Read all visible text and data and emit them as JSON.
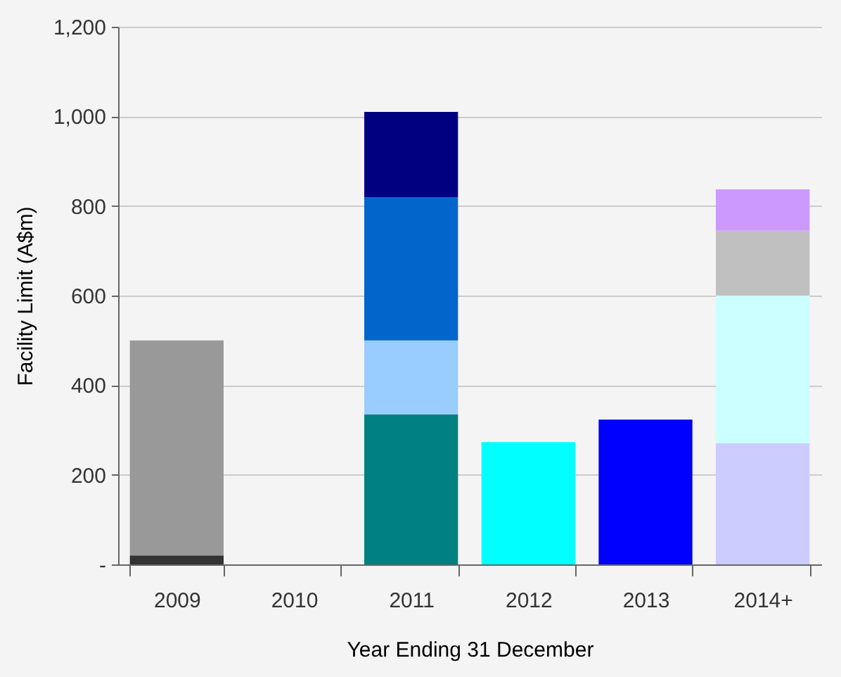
{
  "chart_data": {
    "type": "bar",
    "stacked": true,
    "xlabel": "Year Ending 31 December",
    "ylabel": "Facility Limit (A$m)",
    "categories": [
      "2009",
      "2010",
      "2011",
      "2012",
      "2013",
      "2014+"
    ],
    "series": [
      {
        "colors": [
          "#333333",
          null,
          "#008080",
          "#00ffff",
          "#0000ff",
          "#ccccff"
        ],
        "values": [
          20,
          null,
          335,
          273,
          323,
          270
        ]
      },
      {
        "colors": [
          "#999999",
          null,
          "#99ccff",
          null,
          null,
          "#ccffff"
        ],
        "values": [
          480,
          null,
          165,
          null,
          null,
          330
        ]
      },
      {
        "colors": [
          null,
          null,
          "#0066cc",
          null,
          null,
          "#c0c0c0"
        ],
        "values": [
          null,
          null,
          320,
          null,
          null,
          145
        ]
      },
      {
        "colors": [
          null,
          null,
          "#000080",
          null,
          null,
          "#cc99ff"
        ],
        "values": [
          null,
          null,
          190,
          null,
          null,
          92
        ]
      }
    ],
    "ylim": [
      0,
      1200
    ],
    "yticks": [
      {
        "value": 0,
        "label": "-"
      },
      200,
      400,
      600,
      800,
      {
        "value": 1000,
        "label": "1,000"
      },
      {
        "value": 1200,
        "label": "1,200"
      }
    ],
    "grid": "y"
  }
}
